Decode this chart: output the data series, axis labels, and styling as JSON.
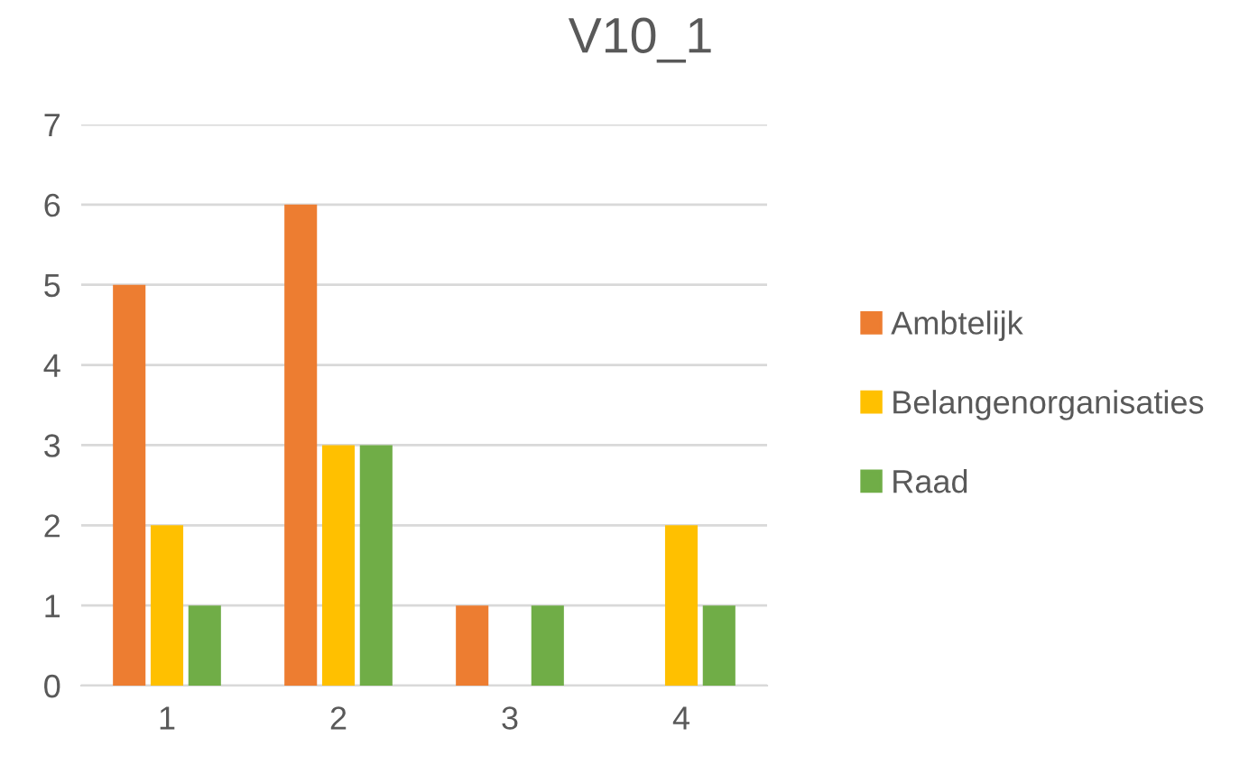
{
  "chart_data": {
    "type": "bar",
    "title": "V10_1",
    "categories": [
      "1",
      "2",
      "3",
      "4"
    ],
    "series": [
      {
        "name": "Ambtelijk",
        "color": "#ed7d31",
        "values": [
          5,
          6,
          1,
          0
        ]
      },
      {
        "name": "Belangenorganisaties",
        "color": "#ffc000",
        "values": [
          2,
          3,
          0,
          2
        ]
      },
      {
        "name": "Raad",
        "color": "#70ad47",
        "values": [
          1,
          3,
          1,
          1
        ]
      }
    ],
    "ylim": [
      0,
      7
    ],
    "yticks": [
      0,
      1,
      2,
      3,
      4,
      5,
      6,
      7
    ],
    "grid": "y",
    "legend": "right"
  }
}
